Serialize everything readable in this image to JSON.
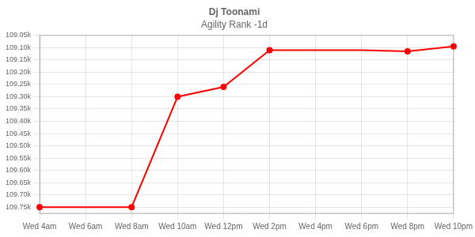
{
  "chart_data": {
    "type": "line",
    "title": "Dj Toonami",
    "subtitle": "Agility Rank -1d",
    "categories": [
      "Wed 4am",
      "Wed 6am",
      "Wed 8am",
      "Wed 10am",
      "Wed 12pm",
      "Wed 2pm",
      "Wed 4pm",
      "Wed 6pm",
      "Wed 8pm",
      "Wed 10pm"
    ],
    "series": [
      {
        "type": "line",
        "marker": "none",
        "color": "#ff0000",
        "values": [
          109750,
          109750,
          109750,
          109300,
          109260,
          109110,
          109110,
          109110,
          109115,
          109095
        ]
      },
      {
        "type": "scatter",
        "marker": "circle",
        "color": "#ff0000",
        "values": [
          109750,
          null,
          109750,
          109300,
          109260,
          109110,
          null,
          null,
          109115,
          109095
        ]
      }
    ],
    "ylim": [
      109775,
      109050
    ],
    "yticks": [
      {
        "value": 109050,
        "label": "109.05k"
      },
      {
        "value": 109100,
        "label": "109.10k"
      },
      {
        "value": 109150,
        "label": "109.15k"
      },
      {
        "value": 109200,
        "label": "109.20k"
      },
      {
        "value": 109250,
        "label": "109.25k"
      },
      {
        "value": 109300,
        "label": "109.30k"
      },
      {
        "value": 109350,
        "label": "109.35k"
      },
      {
        "value": 109400,
        "label": "109.40k"
      },
      {
        "value": 109450,
        "label": "109.45k"
      },
      {
        "value": 109500,
        "label": "109.50k"
      },
      {
        "value": 109550,
        "label": "109.55k"
      },
      {
        "value": 109600,
        "label": "109.60k"
      },
      {
        "value": 109650,
        "label": "109.65k"
      },
      {
        "value": 109700,
        "label": "109.70k"
      },
      {
        "value": 109750,
        "label": "109.75k"
      }
    ],
    "grid": true
  }
}
